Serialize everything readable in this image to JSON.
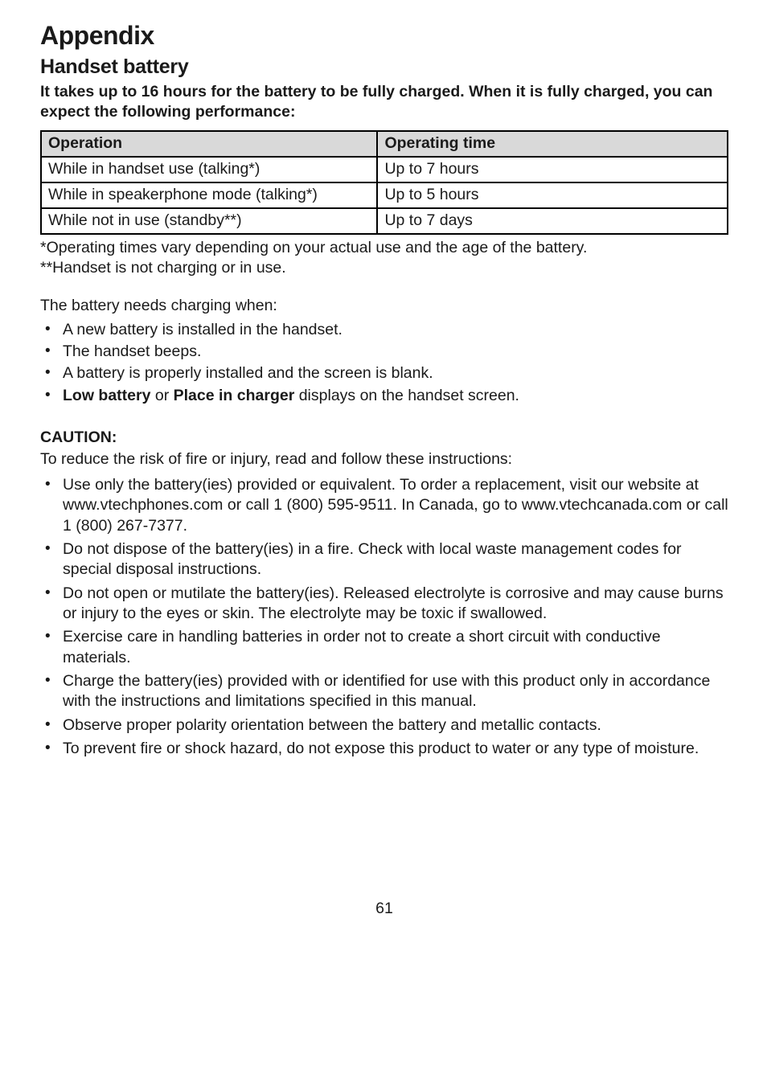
{
  "heading": "Appendix",
  "subheading": "Handset battery",
  "intro": "It takes up to 16 hours for the battery to be fully charged. When it is fully charged, you can expect the following performance:",
  "table": {
    "header": {
      "c1": "Operation",
      "c2": "Operating time"
    },
    "rows": [
      {
        "c1": "While in handset use (talking*)",
        "c2": "Up to 7 hours"
      },
      {
        "c1": "While in speakerphone mode (talking*)",
        "c2": "Up to 5 hours"
      },
      {
        "c1": "While not in use (standby**)",
        "c2": "Up to 7 days"
      }
    ]
  },
  "footnote1": "*Operating times vary depending on your actual use and the age of the battery.",
  "footnote2": "**Handset is not charging or in use.",
  "charge_when": "The battery needs charging when:",
  "charge_list": [
    "A new battery is installed in the handset.",
    "The handset beeps.",
    "A battery is properly installed and the screen is blank."
  ],
  "charge_last_pre": "Low battery",
  "charge_last_mid": " or ",
  "charge_last_b2": "Place in charger",
  "charge_last_post": " displays on the handset screen.",
  "caution_h": "CAUTION:",
  "caution_p": "To reduce the risk of fire or injury, read and follow these instructions:",
  "caution_list": [
    "Use only the battery(ies) provided or equivalent. To order a replacement, visit our website at www.vtechphones.com or call 1 (800) 595-9511. In Canada, go to www.vtechcanada.com or call 1 (800) 267-7377.",
    "Do not dispose of the battery(ies) in a fire. Check with local waste management codes for special disposal instructions.",
    "Do not open or mutilate the battery(ies). Released electrolyte is corrosive and may cause burns or injury to the eyes or skin. The electrolyte may be toxic if swallowed.",
    "Exercise care in handling batteries in order not to create a short circuit with conductive materials.",
    "Charge the battery(ies) provided with or identified for use with this product only in accordance with the instructions and limitations specified in this manual.",
    "Observe proper polarity orientation between the battery and metallic contacts.",
    "To prevent fire or shock hazard, do not expose this product to water or any type of moisture."
  ],
  "pagenum": "61"
}
